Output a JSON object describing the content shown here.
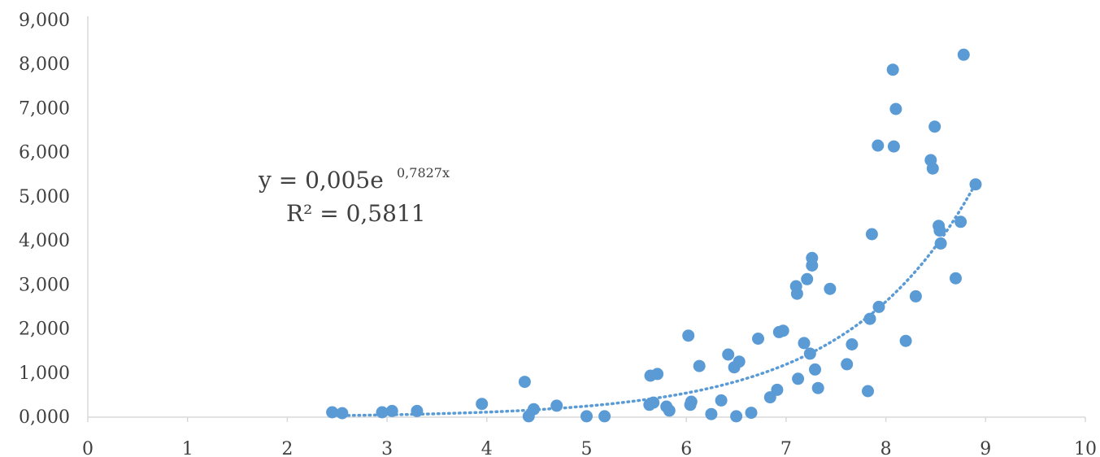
{
  "chart_data": {
    "type": "scatter",
    "title": "",
    "xlabel": "",
    "ylabel": "",
    "xlim": [
      0,
      10
    ],
    "ylim": [
      0,
      9000
    ],
    "x_ticks": [
      "0",
      "1",
      "2",
      "3",
      "4",
      "5",
      "6",
      "7",
      "8",
      "9",
      "10"
    ],
    "y_ticks": [
      "0,000",
      "1,000",
      "2,000",
      "3,000",
      "4,000",
      "5,000",
      "6,000",
      "7,000",
      "8,000",
      "9,000"
    ],
    "grid": false,
    "marker_color": "#5B9BD5",
    "trendline_color": "#5B9BD5",
    "points": [
      [
        2.45,
        110
      ],
      [
        2.55,
        90
      ],
      [
        2.95,
        110
      ],
      [
        3.05,
        140
      ],
      [
        3.3,
        140
      ],
      [
        3.95,
        300
      ],
      [
        4.38,
        800
      ],
      [
        4.42,
        20
      ],
      [
        4.47,
        180
      ],
      [
        4.7,
        260
      ],
      [
        5.0,
        20
      ],
      [
        5.18,
        20
      ],
      [
        5.63,
        280
      ],
      [
        5.64,
        940
      ],
      [
        5.67,
        330
      ],
      [
        5.71,
        980
      ],
      [
        5.8,
        240
      ],
      [
        5.83,
        150
      ],
      [
        6.02,
        1850
      ],
      [
        6.04,
        280
      ],
      [
        6.05,
        350
      ],
      [
        6.13,
        1160
      ],
      [
        6.25,
        70
      ],
      [
        6.35,
        380
      ],
      [
        6.42,
        1420
      ],
      [
        6.48,
        1130
      ],
      [
        6.5,
        20
      ],
      [
        6.53,
        1260
      ],
      [
        6.65,
        100
      ],
      [
        6.72,
        1780
      ],
      [
        6.84,
        450
      ],
      [
        6.91,
        620
      ],
      [
        6.93,
        1930
      ],
      [
        6.97,
        1960
      ],
      [
        7.1,
        2970
      ],
      [
        7.11,
        2800
      ],
      [
        7.12,
        870
      ],
      [
        7.18,
        1680
      ],
      [
        7.21,
        3130
      ],
      [
        7.24,
        1440
      ],
      [
        7.26,
        3440
      ],
      [
        7.26,
        3610
      ],
      [
        7.29,
        1080
      ],
      [
        7.32,
        660
      ],
      [
        7.44,
        2910
      ],
      [
        7.61,
        1200
      ],
      [
        7.66,
        1650
      ],
      [
        7.82,
        590
      ],
      [
        7.84,
        2230
      ],
      [
        7.86,
        4150
      ],
      [
        7.92,
        6160
      ],
      [
        7.93,
        2500
      ],
      [
        8.07,
        7880
      ],
      [
        8.08,
        6140
      ],
      [
        8.1,
        6990
      ],
      [
        8.2,
        1730
      ],
      [
        8.3,
        2740
      ],
      [
        8.45,
        5830
      ],
      [
        8.47,
        5640
      ],
      [
        8.49,
        6590
      ],
      [
        8.53,
        4340
      ],
      [
        8.54,
        4230
      ],
      [
        8.55,
        3940
      ],
      [
        8.7,
        3150
      ],
      [
        8.75,
        4430
      ],
      [
        8.78,
        8220
      ],
      [
        8.9,
        5280
      ]
    ],
    "trendline": {
      "type": "exponential",
      "a": 0.005,
      "b": 0.7827,
      "x_range": [
        2.45,
        8.9
      ],
      "equation_text": "y = 0,005e",
      "exponent_text": "0,7827x",
      "r2_text": "R² = 0,5811"
    }
  }
}
